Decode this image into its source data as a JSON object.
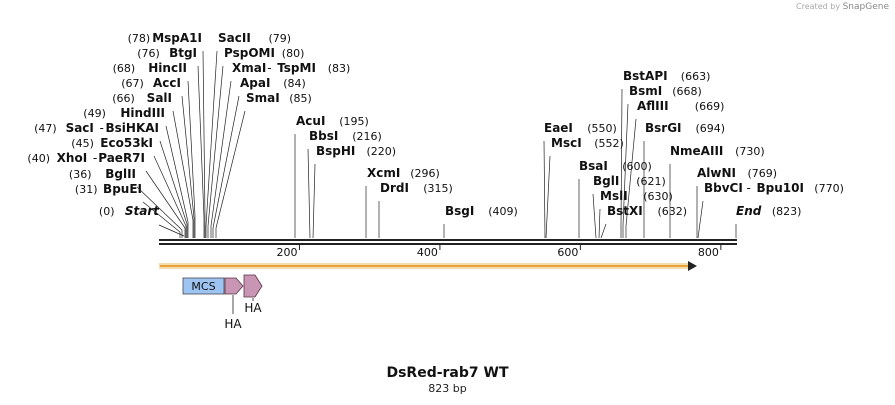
{
  "credit": {
    "created_by": "Created by",
    "brand": "SnapGene"
  },
  "map": {
    "title": "DsRed-rab7 WT",
    "length_label": "823 bp",
    "sequence_length": 823,
    "ticks": [
      {
        "pos": 200,
        "label": "200"
      },
      {
        "pos": 400,
        "label": "400"
      },
      {
        "pos": 600,
        "label": "600"
      },
      {
        "pos": 800,
        "label": "800"
      }
    ],
    "features": [
      {
        "name": "MCS",
        "type": "box",
        "color": "#9ec5f2"
      },
      {
        "name": "HA",
        "type": "arrow",
        "color": "#c896b4"
      },
      {
        "name": "HA",
        "type": "arrow",
        "color": "#c896b4"
      }
    ],
    "orf": {
      "color": "#e8a33a",
      "direction": "forward"
    },
    "sites": [
      {
        "name": "Start",
        "pos": "0",
        "special": true
      },
      {
        "name": "BpuEI",
        "pos": "31"
      },
      {
        "name": "BglII",
        "pos": "36"
      },
      {
        "name": "XhoI",
        "alt": "PaeR7I",
        "pos": "40"
      },
      {
        "name": "Eco53kI",
        "pos": "45"
      },
      {
        "name": "SacI",
        "alt": "BsiHKAI",
        "pos": "47"
      },
      {
        "name": "HindIII",
        "pos": "49"
      },
      {
        "name": "SalI",
        "pos": "66"
      },
      {
        "name": "AccI",
        "pos": "67"
      },
      {
        "name": "HincII",
        "pos": "68"
      },
      {
        "name": "BtgI",
        "pos": "76"
      },
      {
        "name": "MspA1I",
        "pos": "78"
      },
      {
        "name": "SacII",
        "pos": "79"
      },
      {
        "name": "PspOMI",
        "pos": "80"
      },
      {
        "name": "XmaI",
        "alt": "TspMI",
        "pos": "83"
      },
      {
        "name": "ApaI",
        "pos": "84"
      },
      {
        "name": "SmaI",
        "pos": "85"
      },
      {
        "name": "AcuI",
        "pos": "195"
      },
      {
        "name": "BbsI",
        "pos": "216"
      },
      {
        "name": "BspHI",
        "pos": "220"
      },
      {
        "name": "XcmI",
        "pos": "296"
      },
      {
        "name": "DrdI",
        "pos": "315"
      },
      {
        "name": "BsgI",
        "pos": "409"
      },
      {
        "name": "EaeI",
        "pos": "550"
      },
      {
        "name": "MscI",
        "pos": "552"
      },
      {
        "name": "BsaI",
        "pos": "600"
      },
      {
        "name": "BglI",
        "pos": "621"
      },
      {
        "name": "MslI",
        "pos": "630"
      },
      {
        "name": "BstXI",
        "pos": "632"
      },
      {
        "name": "BstAPI",
        "pos": "663"
      },
      {
        "name": "BsmI",
        "pos": "668"
      },
      {
        "name": "AflIII",
        "pos": "669"
      },
      {
        "name": "BsrGI",
        "pos": "694"
      },
      {
        "name": "NmeAIII",
        "pos": "730"
      },
      {
        "name": "AlwNI",
        "pos": "769"
      },
      {
        "name": "BbvCI",
        "alt": "Bpu10I",
        "pos": "770"
      },
      {
        "name": "End",
        "pos": "823",
        "special": true
      }
    ]
  }
}
